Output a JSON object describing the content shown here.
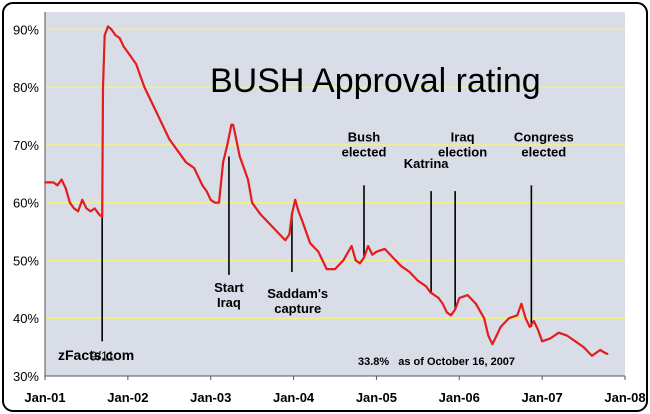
{
  "colors": {
    "plot_background": "#d9dde8",
    "grid": "#f2f089",
    "line": "#e31c1c",
    "marker": "#000000",
    "frame_border": "#000000"
  },
  "chart_data": {
    "type": "line",
    "title": "BUSH Approval rating",
    "xlabel": "",
    "ylabel": "",
    "ylim": [
      30,
      93
    ],
    "y_ticks": [
      "30%",
      "40%",
      "50%",
      "60%",
      "70%",
      "80%",
      "90%"
    ],
    "y_tick_values": [
      30,
      40,
      50,
      60,
      70,
      80,
      90
    ],
    "x_ticks": [
      "Jan-01",
      "Jan-02",
      "Jan-03",
      "Jan-04",
      "Jan-05",
      "Jan-06",
      "Jan-07",
      "Jan-08"
    ],
    "x_tick_values": [
      2001.0,
      2002.0,
      2003.0,
      2004.0,
      2005.0,
      2006.0,
      2007.0,
      2008.0
    ],
    "xlim": [
      2001.0,
      2008.0
    ],
    "grid": true,
    "series": [
      {
        "name": "",
        "x": [
          2001.0,
          2001.05,
          2001.1,
          2001.15,
          2001.2,
          2001.25,
          2001.3,
          2001.35,
          2001.4,
          2001.45,
          2001.5,
          2001.55,
          2001.6,
          2001.65,
          2001.69,
          2001.7,
          2001.72,
          2001.76,
          2001.8,
          2001.85,
          2001.9,
          2001.95,
          2002.0,
          2002.1,
          2002.2,
          2002.3,
          2002.4,
          2002.5,
          2002.6,
          2002.7,
          2002.8,
          2002.9,
          2002.95,
          2003.0,
          2003.05,
          2003.1,
          2003.15,
          2003.2,
          2003.25,
          2003.27,
          2003.3,
          2003.35,
          2003.4,
          2003.45,
          2003.5,
          2003.6,
          2003.7,
          2003.8,
          2003.9,
          2003.95,
          2003.98,
          2004.02,
          2004.06,
          2004.1,
          2004.2,
          2004.3,
          2004.4,
          2004.5,
          2004.6,
          2004.7,
          2004.75,
          2004.8,
          2004.85,
          2004.9,
          2004.95,
          2005.0,
          2005.1,
          2005.2,
          2005.3,
          2005.4,
          2005.5,
          2005.6,
          2005.65,
          2005.7,
          2005.75,
          2005.8,
          2005.85,
          2005.9,
          2005.95,
          2006.0,
          2006.1,
          2006.2,
          2006.3,
          2006.35,
          2006.4,
          2006.45,
          2006.5,
          2006.6,
          2006.7,
          2006.75,
          2006.8,
          2006.85,
          2006.9,
          2006.95,
          2007.0,
          2007.1,
          2007.2,
          2007.3,
          2007.4,
          2007.5,
          2007.6,
          2007.7,
          2007.76,
          2007.79
        ],
        "values": [
          63.5,
          63.5,
          63.5,
          63.0,
          64.0,
          62.5,
          60.0,
          59.0,
          58.5,
          60.5,
          59.0,
          58.5,
          59.0,
          58.0,
          57.5,
          80.0,
          89.0,
          90.5,
          90.0,
          89.0,
          88.5,
          87.0,
          86.0,
          84.0,
          80.0,
          77.0,
          74.0,
          71.0,
          69.0,
          67.0,
          66.0,
          63.0,
          62.0,
          60.5,
          60.0,
          60.0,
          67.0,
          70.0,
          73.5,
          73.5,
          71.5,
          68.0,
          66.0,
          64.0,
          60.0,
          58.0,
          56.5,
          55.0,
          53.5,
          54.5,
          58.0,
          60.5,
          58.5,
          57.0,
          53.0,
          51.5,
          48.5,
          48.5,
          50.0,
          52.5,
          50.0,
          49.5,
          50.5,
          52.5,
          51.0,
          51.5,
          52.0,
          50.5,
          49.0,
          48.0,
          46.5,
          45.5,
          44.5,
          44.0,
          43.5,
          42.5,
          41.0,
          40.5,
          41.5,
          43.5,
          44.0,
          42.5,
          40.0,
          37.0,
          35.5,
          37.0,
          38.5,
          40.0,
          40.5,
          42.5,
          40.0,
          38.5,
          39.5,
          38.0,
          36.0,
          36.5,
          37.5,
          37.0,
          36.0,
          35.0,
          33.5,
          34.5,
          34.0,
          33.8
        ]
      }
    ],
    "annotations": [
      {
        "x": 2001.69,
        "y_top": 57.5,
        "y_bottom": 36.0,
        "label_lines": [
          "9/11"
        ],
        "bold": false,
        "text_x": 2001.69,
        "text_y": 32.7,
        "above": false
      },
      {
        "x": 2003.22,
        "y_top": 68.0,
        "y_bottom": 47.5,
        "label_lines": [
          "Start",
          "Iraq"
        ],
        "bold": true,
        "text_x": 2003.22,
        "text_y": 44.5,
        "above": false
      },
      {
        "x": 2003.98,
        "y_top": 58.0,
        "y_bottom": 48.0,
        "label_lines": [
          "Saddam's",
          "capture"
        ],
        "bold": true,
        "text_x": 2004.05,
        "text_y": 43.5,
        "above": false
      },
      {
        "x": 2004.85,
        "y_top": 50.5,
        "y_bottom": 63.0,
        "label_lines": [
          "Bush",
          "elected"
        ],
        "bold": true,
        "text_x": 2004.85,
        "text_y": 68.0,
        "above": true
      },
      {
        "x": 2005.66,
        "y_top": 44.5,
        "y_bottom": 62.0,
        "label_lines": [
          "Katrina"
        ],
        "bold": true,
        "text_x": 2005.6,
        "text_y": 66.0,
        "above": true
      },
      {
        "x": 2005.95,
        "y_top": 41.5,
        "y_bottom": 62.0,
        "label_lines": [
          "Iraq",
          "election"
        ],
        "bold": true,
        "text_x": 2006.04,
        "text_y": 68.0,
        "above": true
      },
      {
        "x": 2006.87,
        "y_top": 38.5,
        "y_bottom": 63.0,
        "label_lines": [
          "Congress",
          "elected"
        ],
        "bold": true,
        "text_x": 2007.02,
        "text_y": 68.0,
        "above": true
      }
    ],
    "brand": "zFacts.com",
    "footnote_value": "33.8%",
    "footnote_text": "as of October 16, 2007"
  }
}
